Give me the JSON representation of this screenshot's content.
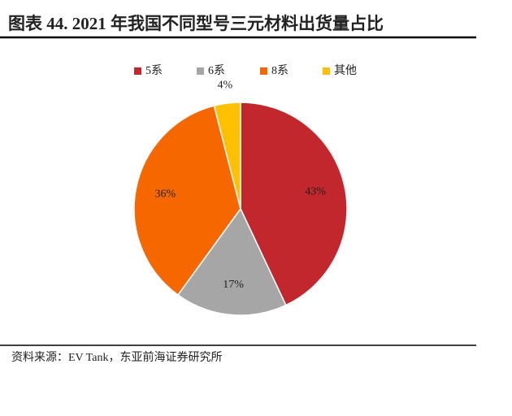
{
  "chart_data": {
    "type": "pie",
    "title": "图表 44. 2021 年我国不同型号三元材料出货量占比",
    "categories": [
      "5系",
      "6系",
      "8系",
      "其他"
    ],
    "values": [
      43,
      17,
      36,
      4
    ],
    "value_labels": [
      "43%",
      "17%",
      "36%",
      "4%"
    ],
    "colors": [
      "#c1272d",
      "#a6a6a6",
      "#f76700",
      "#ffc000"
    ],
    "source": "资料来源：EV Tank，东亚前海证券研究所"
  }
}
